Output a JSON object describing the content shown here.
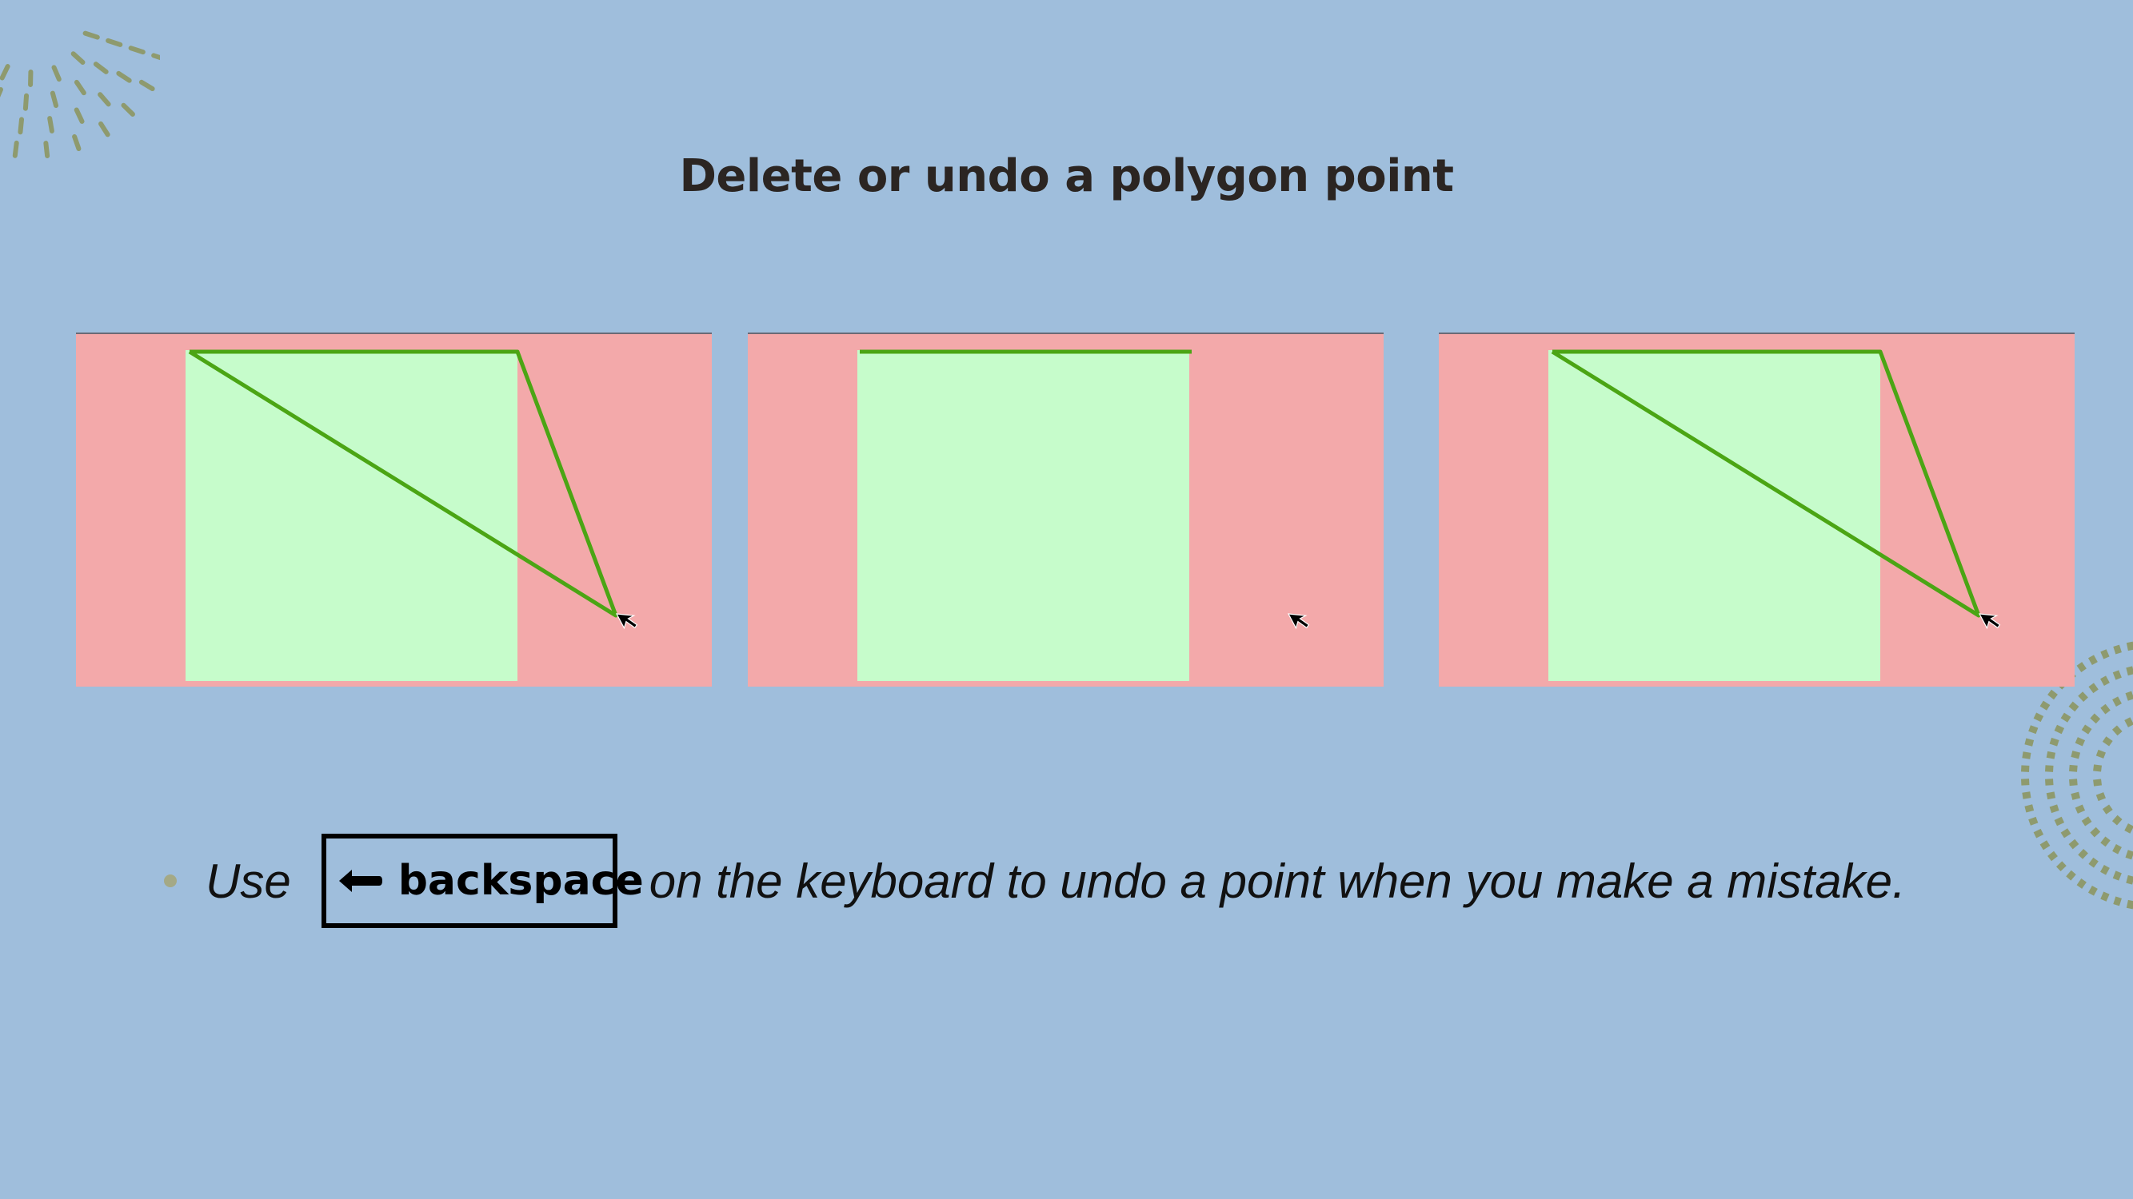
{
  "slide": {
    "title": "Delete or undo a polygon point"
  },
  "panels": [
    {
      "label": "polygon-with-three-points",
      "points_visible": 3
    },
    {
      "label": "polygon-point-undone",
      "points_visible": 2
    },
    {
      "label": "polygon-point-redrawn",
      "points_visible": 3
    }
  ],
  "instruction": {
    "prefix": "Use",
    "key_label": "backspace",
    "key_icon": "left-arrow-icon",
    "suffix": "on the keyboard to undo a point when you make a mistake."
  },
  "colors": {
    "background": "#9fbedc",
    "panel_background": "#f3a9aa",
    "region": "#c6fccb",
    "polygon_line": "#4ba514",
    "title_text": "#2b2522",
    "bullet": "#a4a986",
    "decoration": "#8e9a6e"
  }
}
